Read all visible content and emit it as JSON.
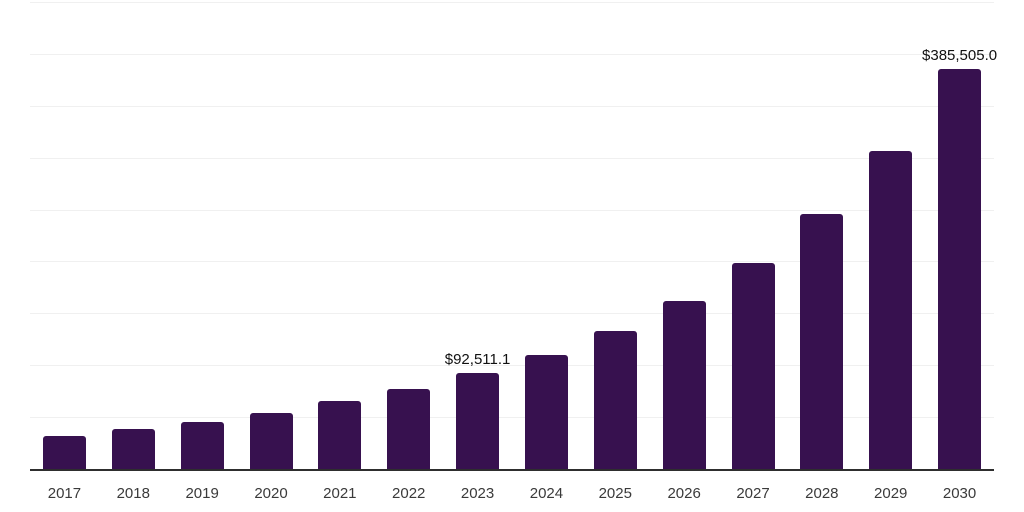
{
  "chart_data": {
    "type": "bar",
    "title": "",
    "xlabel": "",
    "ylabel": "",
    "categories": [
      "2017",
      "2018",
      "2019",
      "2020",
      "2021",
      "2022",
      "2023",
      "2024",
      "2025",
      "2026",
      "2027",
      "2028",
      "2029",
      "2030"
    ],
    "values": [
      32000,
      38800,
      45600,
      54400,
      65800,
      77200,
      92511.1,
      110100,
      133200,
      161900,
      198500,
      245300,
      306700,
      385505.0
    ],
    "annotations": [
      {
        "category": "2023",
        "text": "$92,511.1"
      },
      {
        "category": "2030",
        "text": "$385,505.0"
      }
    ],
    "ylim": [
      0,
      450000
    ],
    "gridline_step": 50000,
    "grid": true,
    "legend": false,
    "y_axis_labels_visible": false,
    "colors": {
      "bar": "#37114F",
      "gridline": "#f0f0f0",
      "axis_line": "#2e2e2e",
      "tick_label": "#3a3a3a",
      "data_label": "#111111"
    }
  }
}
